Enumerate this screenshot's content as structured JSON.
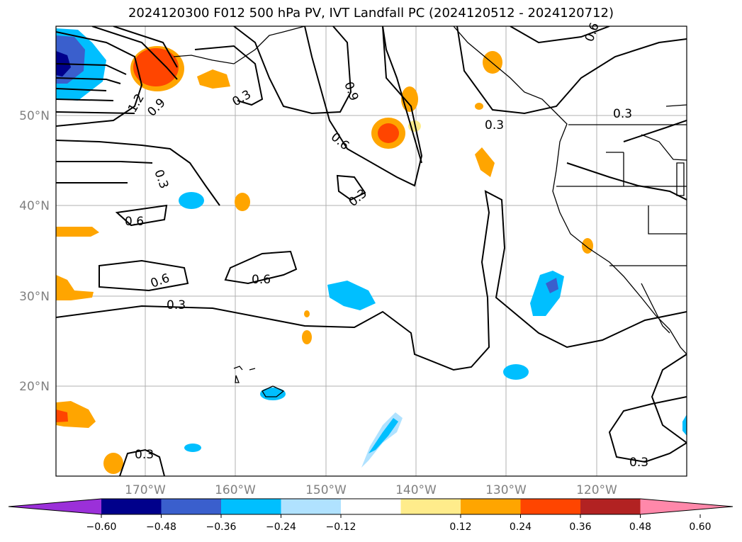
{
  "title": "2024120300 F012 500 hPa PV, IVT Landfall PC (2024120512 - 2024120712)",
  "map": {
    "lat_labels": [
      "50°N",
      "40°N",
      "30°N",
      "20°N"
    ],
    "lon_labels": [
      "170°W",
      "160°W",
      "150°W",
      "140°W",
      "130°W",
      "120°W"
    ],
    "contour_labels": [
      "0.6",
      "0.3",
      "0.9",
      "0.6",
      "0.3",
      "0.3",
      "0.3",
      "0.6",
      "0.6",
      "0.6",
      "0.3",
      "0.3",
      "0.3",
      "1.2",
      "0.9",
      "0.9"
    ]
  },
  "colorbar": {
    "ticks": [
      "−0.60",
      "−0.48",
      "−0.36",
      "−0.24",
      "−0.12",
      "0.12",
      "0.24",
      "0.36",
      "0.48",
      "0.60"
    ],
    "colors": [
      "#9b30d9",
      "#00008b",
      "#3a5fcd",
      "#00bfff",
      "#b0e2ff",
      "#ffffff",
      "#ffec8b",
      "#ffa500",
      "#ff4500",
      "#b22222",
      "#ff88aa"
    ]
  }
}
